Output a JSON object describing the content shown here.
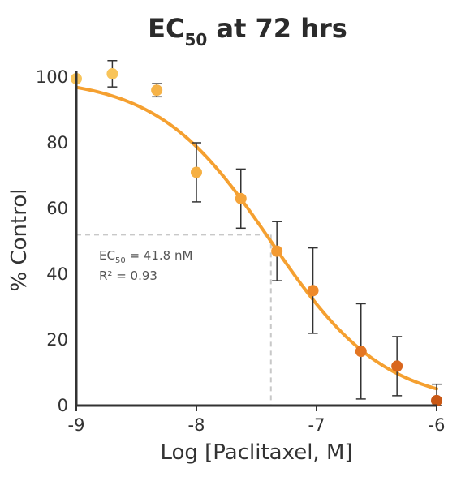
{
  "chart_data": {
    "type": "scatter",
    "title": {
      "main": "EC",
      "sub": "50",
      "rest": " at 72 hrs"
    },
    "xlabel": "Log [Paclitaxel, M]",
    "ylabel": "% Control",
    "xlim": [
      -9,
      -6
    ],
    "ylim": [
      0,
      100
    ],
    "xticks": [
      -9,
      -8,
      -7,
      -6
    ],
    "yticks": [
      0,
      20,
      40,
      60,
      80,
      100
    ],
    "grid": false,
    "legend": "none",
    "points": [
      {
        "x": -9.0,
        "y": 99.5,
        "err": null,
        "color": "#f8c45a"
      },
      {
        "x": -8.7,
        "y": 101,
        "err": 4,
        "color": "#f8c45a"
      },
      {
        "x": -8.33,
        "y": 96,
        "err": 2,
        "color": "#f6b348"
      },
      {
        "x": -8.0,
        "y": 71,
        "err": 9,
        "color": "#f6b043"
      },
      {
        "x": -7.63,
        "y": 63,
        "err": 9,
        "color": "#f5a43a"
      },
      {
        "x": -7.33,
        "y": 47,
        "err": 9,
        "color": "#f39a32"
      },
      {
        "x": -7.03,
        "y": 35,
        "err": 13,
        "color": "#ef8a2a"
      },
      {
        "x": -6.63,
        "y": 16.5,
        "err": 14.5,
        "color": "#e37522"
      },
      {
        "x": -6.33,
        "y": 12,
        "err": 9,
        "color": "#d9661d"
      },
      {
        "x": -6.0,
        "y": 1.5,
        "err": 5,
        "color": "#c95815"
      }
    ],
    "fit": {
      "model": "4PL",
      "top": 100,
      "bottom": 0,
      "log_ec50": -7.38,
      "hill": 0.92,
      "color": "#f5a030"
    },
    "reference_lines": {
      "x": -7.38,
      "y": 52,
      "color": "#c8c8c8"
    },
    "annotation": {
      "line1_main": "EC",
      "line1_sub": "50",
      "line1_rest": " = 41.8 nM",
      "line2": "R² = 0.93"
    },
    "colors": {
      "axis": "#333333",
      "error_bar": "#333333"
    }
  }
}
